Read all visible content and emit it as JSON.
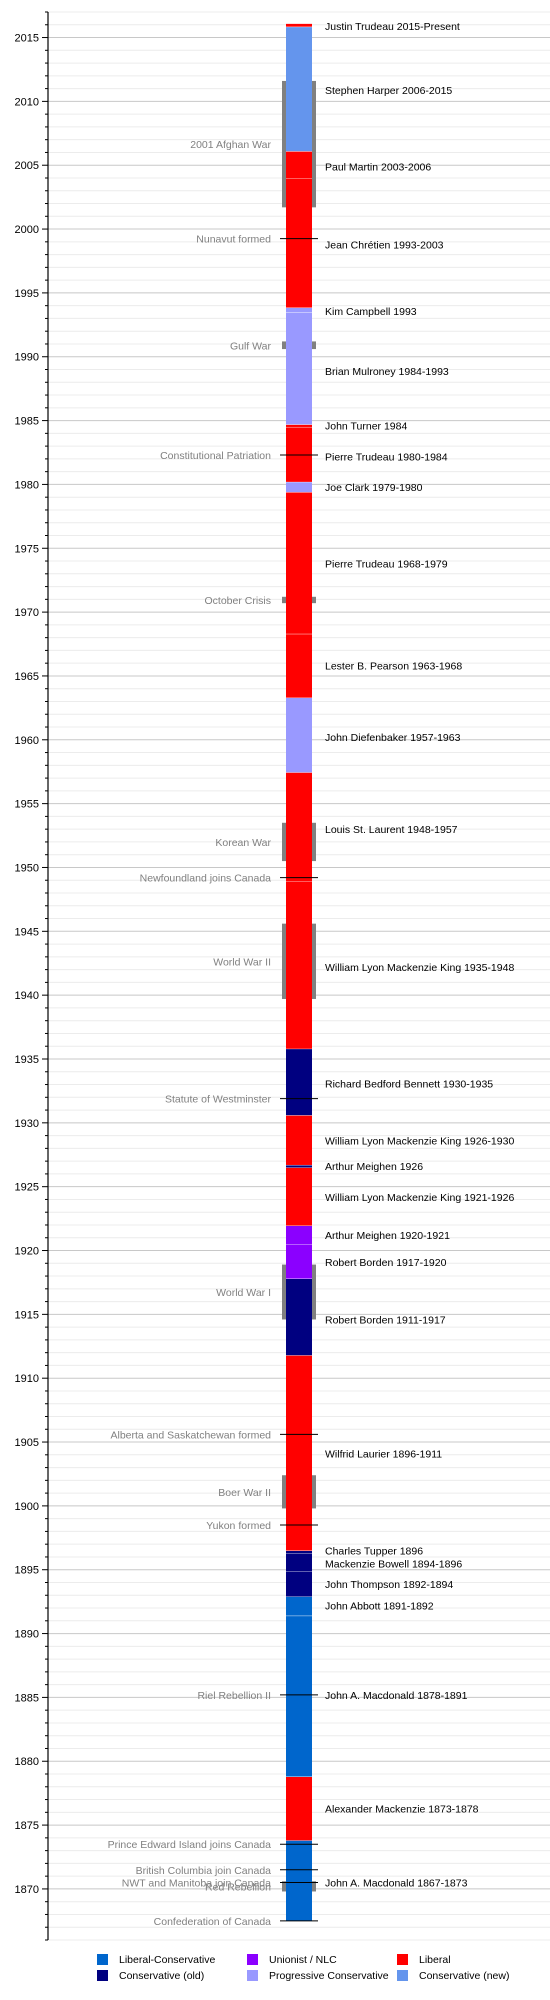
{
  "chart_data": {
    "type": "timeline",
    "ylim": [
      1866,
      2017
    ],
    "major_ticks": [
      1870,
      1875,
      1880,
      1885,
      1890,
      1895,
      1900,
      1905,
      1910,
      1915,
      1920,
      1925,
      1930,
      1935,
      1940,
      1945,
      1950,
      1955,
      1960,
      1965,
      1970,
      1975,
      1980,
      1985,
      1990,
      1995,
      2000,
      2005,
      2010,
      2015
    ],
    "colors": {
      "liberal_conservative": "#0066cc",
      "conservative_old": "#000080",
      "unionist": "#8b00ff",
      "progressive_conservative": "#9999ff",
      "liberal": "#ff0000",
      "conservative_new": "#6495ed"
    },
    "terms": [
      {
        "name": "John A. Macdonald",
        "years": "1867-1873",
        "start": 1867.5,
        "end": 1873.8,
        "party": "liberal_conservative",
        "label_at": 1870.5
      },
      {
        "name": "Alexander Mackenzie",
        "years": "1873-1878",
        "start": 1873.8,
        "end": 1878.8,
        "party": "liberal",
        "label_at": 1876.3
      },
      {
        "name": "John A. Macdonald",
        "years": "1878-1891",
        "start": 1878.8,
        "end": 1891.4,
        "party": "liberal_conservative",
        "label_at": 1885.2
      },
      {
        "name": "John Abbott",
        "years": "1891-1892",
        "start": 1891.4,
        "end": 1892.9,
        "party": "liberal_conservative",
        "label_at": 1892.2
      },
      {
        "name": "John Thompson",
        "years": "1892-1894",
        "start": 1892.9,
        "end": 1894.9,
        "party": "conservative_old",
        "label_at": 1893.9
      },
      {
        "name": "Mackenzie Bowell",
        "years": "1894-1896",
        "start": 1894.9,
        "end": 1896.3,
        "party": "conservative_old",
        "label_at": 1895.5
      },
      {
        "name": "Charles Tupper",
        "years": "1896",
        "start": 1896.3,
        "end": 1896.5,
        "party": "conservative_old",
        "label_at": 1896.5
      },
      {
        "name": "Wilfrid Laurier",
        "years": "1896-1911",
        "start": 1896.5,
        "end": 1911.8,
        "party": "liberal",
        "label_at": 1904.1
      },
      {
        "name": "Robert Borden",
        "years": "1911-1917",
        "start": 1911.8,
        "end": 1917.8,
        "party": "conservative_old",
        "label_at": 1914.6
      },
      {
        "name": "Robert Borden",
        "years": "1917-1920",
        "start": 1917.8,
        "end": 1920.5,
        "party": "unionist",
        "label_at": 1919.1
      },
      {
        "name": "Arthur Meighen",
        "years": "1920-1921",
        "start": 1920.5,
        "end": 1921.95,
        "party": "unionist",
        "label_at": 1921.2
      },
      {
        "name": "William Lyon Mackenzie King",
        "years": "1921-1926",
        "start": 1921.95,
        "end": 1926.5,
        "party": "liberal",
        "label_at": 1924.2
      },
      {
        "name": "Arthur Meighen",
        "years": "1926",
        "start": 1926.5,
        "end": 1926.7,
        "party": "conservative_old",
        "label_at": 1926.6
      },
      {
        "name": "William Lyon Mackenzie King",
        "years": "1926-1930",
        "start": 1926.7,
        "end": 1930.6,
        "party": "liberal",
        "label_at": 1928.6
      },
      {
        "name": "Richard Bedford Bennett",
        "years": "1930-1935",
        "start": 1930.6,
        "end": 1935.8,
        "party": "conservative_old",
        "label_at": 1933.1
      },
      {
        "name": "William Lyon Mackenzie King",
        "years": "1935-1948",
        "start": 1935.8,
        "end": 1948.9,
        "party": "liberal",
        "label_at": 1942.2
      },
      {
        "name": "Louis St. Laurent",
        "years": "1948-1957",
        "start": 1948.9,
        "end": 1957.45,
        "party": "liberal",
        "label_at": 1953.0
      },
      {
        "name": "John Diefenbaker",
        "years": "1957-1963",
        "start": 1957.45,
        "end": 1963.3,
        "party": "progressive_conservative",
        "label_at": 1960.2
      },
      {
        "name": "Lester B. Pearson",
        "years": "1963-1968",
        "start": 1963.3,
        "end": 1968.3,
        "party": "liberal",
        "label_at": 1965.8
      },
      {
        "name": "Pierre Trudeau",
        "years": "1968-1979",
        "start": 1968.3,
        "end": 1979.4,
        "party": "liberal",
        "label_at": 1973.8
      },
      {
        "name": "Joe Clark",
        "years": "1979-1980",
        "start": 1979.4,
        "end": 1980.2,
        "party": "progressive_conservative",
        "label_at": 1979.8
      },
      {
        "name": "Pierre Trudeau",
        "years": "1980-1984",
        "start": 1980.2,
        "end": 1984.5,
        "party": "liberal",
        "label_at": 1982.2
      },
      {
        "name": "John Turner",
        "years": "1984",
        "start": 1984.5,
        "end": 1984.7,
        "party": "liberal",
        "label_at": 1984.6
      },
      {
        "name": "Brian Mulroney",
        "years": "1984-1993",
        "start": 1984.7,
        "end": 1993.5,
        "party": "progressive_conservative",
        "label_at": 1988.9
      },
      {
        "name": "Kim Campbell",
        "years": "1993",
        "start": 1993.5,
        "end": 1993.85,
        "party": "progressive_conservative",
        "label_at": 1993.6
      },
      {
        "name": "Jean Chrétien",
        "years": "1993-2003",
        "start": 1993.85,
        "end": 2003.95,
        "party": "liberal",
        "label_at": 1998.8
      },
      {
        "name": "Paul Martin",
        "years": "2003-2006",
        "start": 2003.95,
        "end": 2006.1,
        "party": "liberal",
        "label_at": 2004.9
      },
      {
        "name": "Stephen Harper",
        "years": "2006-2015",
        "start": 2006.1,
        "end": 2015.85,
        "party": "conservative_new",
        "label_at": 2010.9
      },
      {
        "name": "Justin Trudeau",
        "years": "2015-Present",
        "start": 2015.85,
        "end": 2016.1,
        "party": "liberal",
        "label_at": 2015.9
      }
    ],
    "events_point": [
      {
        "label": "Confederation of Canada",
        "year": 1867.5
      },
      {
        "label": "NWT and Manitoba join Canada",
        "year": 1870.5
      },
      {
        "label": "British Columbia join Canada",
        "year": 1871.5
      },
      {
        "label": "Prince Edward Island joins Canada",
        "year": 1873.5
      },
      {
        "label": "Riel Rebellion II",
        "year": 1885.2
      },
      {
        "label": "Yukon formed",
        "year": 1898.5
      },
      {
        "label": "Alberta and Saskatchewan formed",
        "year": 1905.6
      },
      {
        "label": "Statute of Westminster",
        "year": 1931.9
      },
      {
        "label": "Newfoundland joins Canada",
        "year": 1949.2
      },
      {
        "label": "Constitutional Patriation",
        "year": 1982.3
      },
      {
        "label": "Nunavut formed",
        "year": 1999.25
      }
    ],
    "events_span": [
      {
        "label": "Red Rebellion",
        "start": 1869.8,
        "end": 1870.6
      },
      {
        "label": "Boer War II",
        "start": 1899.8,
        "end": 1902.4
      },
      {
        "label": "World War I",
        "start": 1914.6,
        "end": 1918.9
      },
      {
        "label": "World War II",
        "start": 1939.7,
        "end": 1945.6
      },
      {
        "label": "Korean War",
        "start": 1950.5,
        "end": 1953.5
      },
      {
        "label": "October Crisis",
        "start": 1970.7,
        "end": 1971.2
      },
      {
        "label": "Gulf War",
        "start": 1990.6,
        "end": 1991.2
      },
      {
        "label": "2001 Afghan War",
        "start": 2001.7,
        "end": 2011.6
      }
    ],
    "legend": [
      {
        "label": "Liberal-Conservative",
        "party": "liberal_conservative"
      },
      {
        "label": "Conservative (old)",
        "party": "conservative_old"
      },
      {
        "label": "Unionist / NLC",
        "party": "unionist"
      },
      {
        "label": "Progressive Conservative",
        "party": "progressive_conservative"
      },
      {
        "label": "Liberal",
        "party": "liberal"
      },
      {
        "label": "Conservative (new)",
        "party": "conservative_new"
      }
    ]
  }
}
